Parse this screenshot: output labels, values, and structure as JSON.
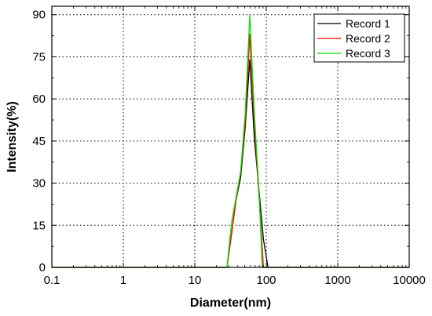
{
  "chart_data": {
    "type": "line",
    "title": "",
    "xlabel": "Diameter(nm)",
    "ylabel": "Intensity(%)",
    "xscale": "log",
    "xlim": [
      0.1,
      10000
    ],
    "ylim": [
      0,
      93
    ],
    "xticks": [
      0.1,
      1,
      10,
      100,
      1000,
      10000
    ],
    "xtick_labels": [
      "0.1",
      "1",
      "10",
      "100",
      "1000",
      "10000"
    ],
    "yticks": [
      0,
      15,
      30,
      45,
      60,
      75,
      90
    ],
    "ytick_labels": [
      "0",
      "15",
      "30",
      "45",
      "60",
      "75",
      "90"
    ],
    "grid": true,
    "legend_position": "top-right",
    "series": [
      {
        "name": "Record 1",
        "color": "#000000",
        "points": [
          [
            0.1,
            0
          ],
          [
            28.2,
            0
          ],
          [
            32.7,
            12
          ],
          [
            37.8,
            24
          ],
          [
            43.8,
            32
          ],
          [
            50.8,
            50
          ],
          [
            58.8,
            74
          ],
          [
            68.1,
            46
          ],
          [
            78.8,
            28
          ],
          [
            91.3,
            10
          ],
          [
            105.7,
            0
          ],
          [
            10000,
            0
          ]
        ]
      },
      {
        "name": "Record 2",
        "color": "#ff0000",
        "points": [
          [
            0.1,
            0
          ],
          [
            28.2,
            0
          ],
          [
            32.7,
            12
          ],
          [
            37.8,
            24
          ],
          [
            43.8,
            34
          ],
          [
            50.8,
            52
          ],
          [
            58.8,
            83
          ],
          [
            68.1,
            52
          ],
          [
            78.8,
            26
          ],
          [
            91.3,
            0
          ],
          [
            10000,
            0
          ]
        ]
      },
      {
        "name": "Record 3",
        "color": "#00e000",
        "points": [
          [
            0.1,
            0
          ],
          [
            28.2,
            0
          ],
          [
            32.7,
            16
          ],
          [
            37.8,
            25
          ],
          [
            43.8,
            34
          ],
          [
            50.8,
            55
          ],
          [
            58.8,
            90
          ],
          [
            68.1,
            55
          ],
          [
            78.8,
            28
          ],
          [
            88.0,
            0
          ],
          [
            10000,
            0
          ]
        ]
      }
    ]
  }
}
